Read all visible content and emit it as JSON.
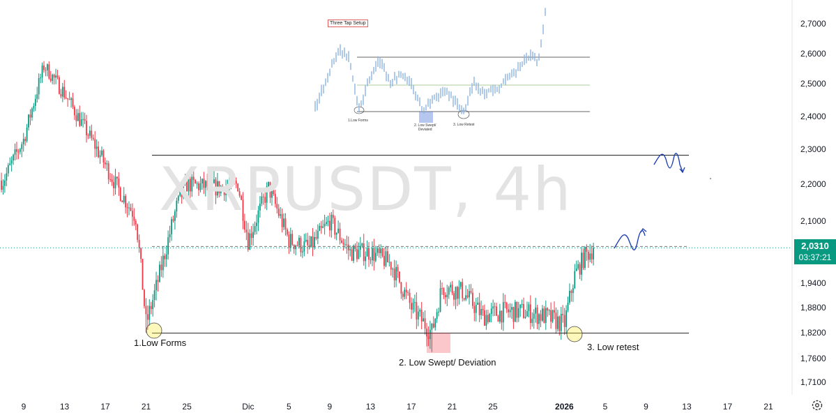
{
  "watermark": "XRPUSDT, 4h",
  "price_label": {
    "price": "2,0310",
    "countdown": "03:37:21",
    "color": "#089981"
  },
  "colors": {
    "up": "#089981",
    "down": "#f23645",
    "inset": "#8fb3e0",
    "annotation": "#1f3fb3"
  },
  "annotations": {
    "low_forms": "1.Low Forms",
    "low_swept": "2. Low Swept/ Deviation",
    "low_retest": "3. Low retest"
  },
  "inset": {
    "title": "Three Tap Setup",
    "low_forms": "1.Low Forms",
    "low_swept_1": "2. Low Swept/",
    "low_swept_2": "Deviated",
    "low_retest": "3. Low Retest"
  },
  "icons": {
    "settings": "gear-icon"
  },
  "chart_data": {
    "type": "candlestick",
    "symbol": "XRPUSDT",
    "timeframe": "4h",
    "y_ticks": [
      "2,7000",
      "2,6000",
      "2,5000",
      "2,4000",
      "2,3000",
      "2,2000",
      "2,1000",
      "1,9400",
      "1,8800",
      "1,8200",
      "1,7600",
      "1,7100"
    ],
    "x_ticks": [
      "9",
      "13",
      "17",
      "21",
      "25",
      "Dic",
      "5",
      "9",
      "13",
      "17",
      "21",
      "25",
      "2026",
      "5",
      "9",
      "13",
      "17",
      "21"
    ],
    "current_price": 2.031,
    "levels": {
      "resistance": 2.283,
      "support": 1.819,
      "current": 2.031
    },
    "waypoints": [
      [
        "2025-11-07",
        2.21
      ],
      [
        "2025-11-09",
        2.33
      ],
      [
        "2025-11-11",
        2.56
      ],
      [
        "2025-11-13",
        2.47
      ],
      [
        "2025-11-16",
        2.31
      ],
      [
        "2025-11-18",
        2.2
      ],
      [
        "2025-11-20",
        2.11
      ],
      [
        "2025-11-21",
        1.84
      ],
      [
        "2025-11-22",
        1.93
      ],
      [
        "2025-11-24",
        2.14
      ],
      [
        "2025-11-25",
        2.2
      ],
      [
        "2025-11-28",
        2.19
      ],
      [
        "2025-11-30",
        2.2
      ],
      [
        "2025-12-01",
        2.05
      ],
      [
        "2025-12-03",
        2.19
      ],
      [
        "2025-12-05",
        2.05
      ],
      [
        "2025-12-07",
        2.03
      ],
      [
        "2025-12-09",
        2.1
      ],
      [
        "2025-12-11",
        2.02
      ],
      [
        "2025-12-13",
        2.02
      ],
      [
        "2025-12-15",
        1.99
      ],
      [
        "2025-12-17",
        1.88
      ],
      [
        "2025-12-19",
        1.82
      ],
      [
        "2025-12-20",
        1.93
      ],
      [
        "2025-12-22",
        1.92
      ],
      [
        "2025-12-24",
        1.86
      ],
      [
        "2025-12-26",
        1.87
      ],
      [
        "2025-12-28",
        1.87
      ],
      [
        "2025-12-30",
        1.86
      ],
      [
        "2026-01-01",
        1.84
      ],
      [
        "2026-01-02",
        1.96
      ],
      [
        "2026-01-03",
        2.01
      ],
      [
        "2026-01-04",
        2.031
      ]
    ]
  }
}
